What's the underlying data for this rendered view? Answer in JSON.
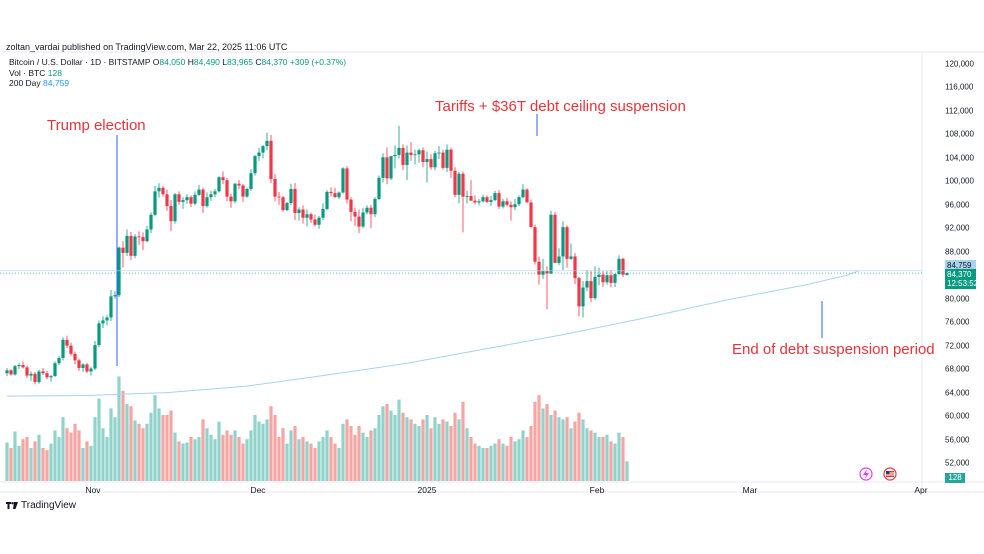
{
  "publisher": "zoltan_vardai published on TradingView.com, Mar 22, 2025 11:06 UTC",
  "legend": {
    "symbol": "Bitcoin / U.S. Dollar · 1D · BITSTAMP",
    "open_label": "O",
    "open": "84,050",
    "high_label": "H",
    "high": "84,490",
    "low_label": "L",
    "low": "83,965",
    "close_label": "C",
    "close": "84,370",
    "change": "+309 (+0.37%)",
    "vol_label": "Vol · BTC",
    "vol_value": "128",
    "ma_label": "200 Day",
    "ma_value": "84,759"
  },
  "price_tags": {
    "ma": "84,759",
    "last": "84,370",
    "countdown": "12:53:52",
    "volume": "128"
  },
  "annotations": {
    "trump": "Trump election",
    "tariffs": "Tariffs + $36T debt ceiling suspension",
    "debt_end": "End of debt suspension period"
  },
  "branding": "TradingView",
  "colors": {
    "up": "#089981",
    "down": "#f23645",
    "vol_up": "#8fd3cb",
    "vol_down": "#f5a5a3",
    "ma": "#a8d3ec",
    "annotation": "#e2353b",
    "marker_line": "#2962ff"
  },
  "chart_data": {
    "type": "candlestick",
    "y_ticks": [
      "120,000",
      "116,000",
      "112,000",
      "108,000",
      "104,000",
      "100,000",
      "96,000",
      "92,000",
      "88,000",
      "84,000",
      "80,000",
      "76,000",
      "72,000",
      "68,000",
      "64,000",
      "60,000",
      "56,000",
      "52,000"
    ],
    "x_ticks": [
      "Nov",
      "Dec",
      "2025",
      "Feb",
      "Mar",
      "Apr"
    ],
    "ylim": [
      49000,
      121000
    ],
    "ma_series": [
      {
        "day": 0,
        "value": 63400
      },
      {
        "day": 20,
        "value": 63500
      },
      {
        "day": 40,
        "value": 64000
      },
      {
        "day": 60,
        "value": 65100
      },
      {
        "day": 80,
        "value": 67000
      },
      {
        "day": 100,
        "value": 69000
      },
      {
        "day": 120,
        "value": 71500
      },
      {
        "day": 140,
        "value": 74000
      },
      {
        "day": 160,
        "value": 76800
      },
      {
        "day": 180,
        "value": 79800
      },
      {
        "day": 200,
        "value": 82400
      },
      {
        "day": 210,
        "value": 84000
      },
      {
        "day": 213,
        "value": 84759
      }
    ],
    "candles": [
      [
        67300,
        68200,
        66800,
        67800,
        0.35
      ],
      [
        67800,
        68000,
        66900,
        67100,
        0.3
      ],
      [
        67100,
        68700,
        66900,
        68500,
        0.45
      ],
      [
        68500,
        69000,
        68000,
        68700,
        0.32
      ],
      [
        68700,
        69300,
        68100,
        68300,
        0.38
      ],
      [
        68300,
        68600,
        66500,
        66900,
        0.4
      ],
      [
        66900,
        67600,
        66000,
        67200,
        0.3
      ],
      [
        67200,
        67500,
        65400,
        65800,
        0.36
      ],
      [
        65800,
        67900,
        65500,
        67600,
        0.42
      ],
      [
        67600,
        68200,
        67000,
        67300,
        0.3
      ],
      [
        67300,
        67700,
        66300,
        66600,
        0.28
      ],
      [
        66600,
        67000,
        65900,
        66800,
        0.34
      ],
      [
        66800,
        69300,
        66700,
        69000,
        0.46
      ],
      [
        69000,
        70200,
        68700,
        69900,
        0.4
      ],
      [
        69900,
        73400,
        69500,
        73000,
        0.58
      ],
      [
        73000,
        73700,
        71600,
        72000,
        0.48
      ],
      [
        72000,
        72500,
        70300,
        70600,
        0.44
      ],
      [
        70600,
        71000,
        68800,
        69500,
        0.52
      ],
      [
        69500,
        69800,
        67700,
        68200,
        0.46
      ],
      [
        68200,
        69000,
        67500,
        68800,
        0.3
      ],
      [
        68800,
        69100,
        67300,
        67600,
        0.36
      ],
      [
        67600,
        68400,
        66900,
        68100,
        0.32
      ],
      [
        68100,
        72800,
        67800,
        72100,
        0.58
      ],
      [
        72100,
        76300,
        71800,
        75800,
        0.75
      ],
      [
        75800,
        77000,
        75000,
        76300,
        0.48
      ],
      [
        76300,
        77200,
        75500,
        76800,
        0.4
      ],
      [
        76800,
        81500,
        76200,
        80400,
        0.66
      ],
      [
        80400,
        81300,
        80000,
        80600,
        0.58
      ],
      [
        80600,
        88900,
        80300,
        88700,
        0.95
      ],
      [
        88700,
        89800,
        85300,
        87800,
        0.82
      ],
      [
        87800,
        91800,
        87300,
        90700,
        0.7
      ],
      [
        90700,
        91400,
        86600,
        87300,
        0.68
      ],
      [
        87300,
        91000,
        86900,
        90600,
        0.55
      ],
      [
        90600,
        91500,
        89200,
        90500,
        0.52
      ],
      [
        90500,
        91300,
        88300,
        89800,
        0.48
      ],
      [
        89800,
        92400,
        89600,
        91800,
        0.52
      ],
      [
        91800,
        94700,
        91200,
        94300,
        0.62
      ],
      [
        94300,
        99200,
        94100,
        98300,
        0.78
      ],
      [
        98300,
        99700,
        97200,
        98900,
        0.66
      ],
      [
        98900,
        99200,
        97400,
        97800,
        0.6
      ],
      [
        97800,
        98600,
        95000,
        95800,
        0.6
      ],
      [
        95800,
        96800,
        91500,
        93200,
        0.64
      ],
      [
        93200,
        98000,
        92800,
        97800,
        0.44
      ],
      [
        97800,
        98300,
        96000,
        96500,
        0.36
      ],
      [
        96500,
        97300,
        95300,
        96800,
        0.34
      ],
      [
        96800,
        97800,
        96200,
        97300,
        0.35
      ],
      [
        97300,
        97600,
        95600,
        96200,
        0.4
      ],
      [
        96200,
        98300,
        95900,
        97700,
        0.38
      ],
      [
        97700,
        99400,
        97500,
        98600,
        0.4
      ],
      [
        98600,
        98900,
        94600,
        95800,
        0.56
      ],
      [
        95800,
        98100,
        95500,
        97300,
        0.48
      ],
      [
        97300,
        98400,
        96700,
        97800,
        0.42
      ],
      [
        97800,
        98700,
        97300,
        98300,
        0.38
      ],
      [
        98300,
        100900,
        98100,
        100700,
        0.54
      ],
      [
        100700,
        101700,
        99500,
        100200,
        0.42
      ],
      [
        100200,
        100600,
        96600,
        97400,
        0.46
      ],
      [
        97400,
        97900,
        95500,
        96600,
        0.42
      ],
      [
        96600,
        99700,
        96300,
        99600,
        0.46
      ],
      [
        99600,
        100200,
        98700,
        99300,
        0.4
      ],
      [
        99300,
        99600,
        96500,
        97400,
        0.34
      ],
      [
        97400,
        98900,
        97200,
        98700,
        0.38
      ],
      [
        98700,
        102100,
        98400,
        101400,
        0.46
      ],
      [
        101400,
        104500,
        101000,
        104300,
        0.6
      ],
      [
        104300,
        105700,
        103500,
        104900,
        0.54
      ],
      [
        104900,
        106200,
        103900,
        106000,
        0.52
      ],
      [
        106000,
        108300,
        105300,
        106900,
        0.56
      ],
      [
        106900,
        107900,
        99700,
        100400,
        0.68
      ],
      [
        100400,
        101300,
        96600,
        97400,
        0.6
      ],
      [
        97400,
        98200,
        96000,
        97300,
        0.4
      ],
      [
        97300,
        97500,
        94800,
        95100,
        0.48
      ],
      [
        95100,
        96500,
        94900,
        96300,
        0.34
      ],
      [
        96300,
        99600,
        95900,
        98700,
        0.46
      ],
      [
        98700,
        99700,
        93400,
        94600,
        0.5
      ],
      [
        94600,
        95600,
        93300,
        95200,
        0.38
      ],
      [
        95200,
        95900,
        92800,
        93800,
        0.4
      ],
      [
        93800,
        95200,
        92300,
        94400,
        0.36
      ],
      [
        94400,
        94700,
        92900,
        93500,
        0.34
      ],
      [
        93500,
        94300,
        92300,
        92600,
        0.3
      ],
      [
        92600,
        94100,
        91900,
        93800,
        0.36
      ],
      [
        93800,
        96300,
        93400,
        95300,
        0.4
      ],
      [
        95300,
        98500,
        95100,
        98200,
        0.46
      ],
      [
        98200,
        99000,
        97400,
        98000,
        0.4
      ],
      [
        98000,
        98900,
        97200,
        97300,
        0.34
      ],
      [
        97300,
        98300,
        97000,
        98100,
        0.3
      ],
      [
        98100,
        102400,
        97900,
        102200,
        0.52
      ],
      [
        102200,
        102600,
        96200,
        96900,
        0.56
      ],
      [
        96900,
        97300,
        93200,
        94800,
        0.5
      ],
      [
        94800,
        95500,
        92400,
        94000,
        0.42
      ],
      [
        94000,
        95200,
        91200,
        92300,
        0.5
      ],
      [
        92300,
        95500,
        92000,
        94700,
        0.44
      ],
      [
        94700,
        95900,
        94400,
        95500,
        0.4
      ],
      [
        95500,
        96000,
        92000,
        94400,
        0.46
      ],
      [
        94400,
        97300,
        93900,
        97000,
        0.48
      ],
      [
        97000,
        101000,
        96800,
        100600,
        0.6
      ],
      [
        100600,
        104800,
        99800,
        104100,
        0.68
      ],
      [
        104100,
        105800,
        99500,
        100500,
        0.7
      ],
      [
        100500,
        104000,
        100200,
        104300,
        0.64
      ],
      [
        104300,
        106100,
        102200,
        104500,
        0.6
      ],
      [
        104500,
        109500,
        103900,
        105700,
        0.74
      ],
      [
        105700,
        106300,
        101900,
        102800,
        0.62
      ],
      [
        102800,
        106100,
        100200,
        104900,
        0.58
      ],
      [
        104900,
        106700,
        103500,
        104500,
        0.56
      ],
      [
        104500,
        105400,
        102900,
        104600,
        0.52
      ],
      [
        104600,
        105600,
        103200,
        105300,
        0.5
      ],
      [
        105300,
        105800,
        102400,
        103300,
        0.56
      ],
      [
        103300,
        105100,
        99800,
        103800,
        0.6
      ],
      [
        103800,
        104600,
        102000,
        102400,
        0.48
      ],
      [
        102400,
        105200,
        101900,
        104800,
        0.58
      ],
      [
        104800,
        106000,
        103800,
        104900,
        0.52
      ],
      [
        104900,
        105400,
        102000,
        102300,
        0.56
      ],
      [
        102300,
        106300,
        101600,
        105400,
        0.54
      ],
      [
        105400,
        105700,
        100600,
        101800,
        0.5
      ],
      [
        101800,
        102400,
        97300,
        97700,
        0.62
      ],
      [
        97700,
        101600,
        96300,
        101300,
        0.56
      ],
      [
        101300,
        101700,
        91300,
        97400,
        0.72
      ],
      [
        97400,
        98400,
        96200,
        97500,
        0.48
      ],
      [
        97500,
        100200,
        97200,
        96700,
        0.4
      ],
      [
        96700,
        97600,
        96100,
        96400,
        0.34
      ],
      [
        96400,
        97000,
        95900,
        96600,
        0.32
      ],
      [
        96600,
        97700,
        96400,
        97300,
        0.3
      ],
      [
        97300,
        97600,
        96300,
        96500,
        0.3
      ],
      [
        96500,
        97500,
        95800,
        96800,
        0.32
      ],
      [
        96800,
        98400,
        96600,
        98000,
        0.34
      ],
      [
        98000,
        98500,
        95300,
        95700,
        0.38
      ],
      [
        95700,
        97000,
        95400,
        96600,
        0.34
      ],
      [
        96600,
        97200,
        95700,
        96000,
        0.32
      ],
      [
        96000,
        96600,
        93300,
        95600,
        0.4
      ],
      [
        95600,
        97000,
        95100,
        96100,
        0.36
      ],
      [
        96100,
        97600,
        95800,
        97300,
        0.38
      ],
      [
        97300,
        99500,
        97100,
        98600,
        0.46
      ],
      [
        98600,
        98800,
        96600,
        96400,
        0.4
      ],
      [
        96400,
        96900,
        92400,
        92200,
        0.5
      ],
      [
        92200,
        92600,
        85800,
        86300,
        0.72
      ],
      [
        86300,
        87200,
        82400,
        84100,
        0.78
      ],
      [
        84100,
        86800,
        83400,
        84700,
        0.66
      ],
      [
        84700,
        85500,
        78200,
        84300,
        0.7
      ],
      [
        84300,
        95000,
        84200,
        94300,
        0.6
      ],
      [
        94300,
        94800,
        86700,
        86100,
        0.64
      ],
      [
        86100,
        88600,
        85700,
        87200,
        0.58
      ],
      [
        87200,
        93200,
        84900,
        92200,
        0.56
      ],
      [
        92200,
        92500,
        85300,
        86800,
        0.58
      ],
      [
        86800,
        89400,
        86600,
        87200,
        0.48
      ],
      [
        87200,
        87800,
        82500,
        83500,
        0.54
      ],
      [
        83500,
        83700,
        77000,
        78700,
        0.62
      ],
      [
        78700,
        83000,
        76800,
        81900,
        0.56
      ],
      [
        81900,
        84900,
        81300,
        83000,
        0.48
      ],
      [
        83000,
        84700,
        79400,
        80100,
        0.46
      ],
      [
        80100,
        85500,
        79800,
        83700,
        0.44
      ],
      [
        83700,
        85300,
        82300,
        84100,
        0.4
      ],
      [
        84100,
        84800,
        82000,
        82800,
        0.4
      ],
      [
        82800,
        84700,
        82400,
        84000,
        0.42
      ],
      [
        84000,
        84900,
        81900,
        82700,
        0.36
      ],
      [
        82700,
        84300,
        82000,
        84200,
        0.34
      ],
      [
        84200,
        87400,
        84000,
        86800,
        0.44
      ],
      [
        86800,
        87000,
        83700,
        84100,
        0.4
      ],
      [
        84050,
        84490,
        83965,
        84370,
        0.18
      ]
    ]
  }
}
